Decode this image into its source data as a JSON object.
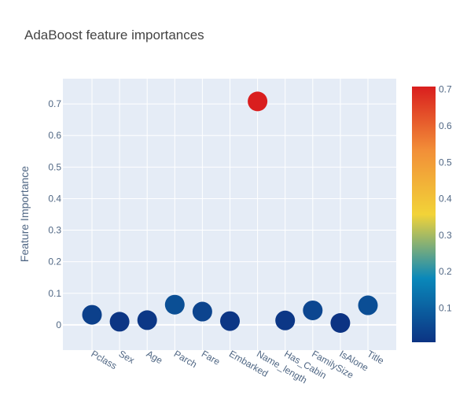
{
  "chart_data": {
    "type": "scatter",
    "title": "AdaBoost feature importances",
    "xlabel": "",
    "ylabel": "Feature Importance",
    "categories": [
      "Pclass",
      "Sex",
      "Age",
      "Parch",
      "Fare",
      "Embarked",
      "Name_length",
      "Has_Cabin",
      "FamilySize",
      "IsAlone",
      "Title"
    ],
    "values": [
      0.032,
      0.01,
      0.015,
      0.064,
      0.042,
      0.012,
      0.708,
      0.014,
      0.046,
      0.006,
      0.062
    ],
    "ylim": [
      -0.08,
      0.78
    ],
    "yticks": [
      0,
      0.1,
      0.2,
      0.3,
      0.4,
      0.5,
      0.6,
      0.7
    ],
    "ytick_labels": [
      "0",
      "0.1",
      "0.2",
      "0.3",
      "0.4",
      "0.5",
      "0.6",
      "0.7"
    ],
    "grid": true,
    "background_color": "#E5ECF6",
    "colorscale": "Portland-like (dark blue to red)",
    "colorbar": {
      "range": [
        0.006,
        0.708
      ],
      "ticks": [
        0.1,
        0.2,
        0.3,
        0.4,
        0.5,
        0.6,
        0.7
      ],
      "tick_labels": [
        "0.1",
        "0.2",
        "0.3",
        "0.4",
        "0.5",
        "0.6",
        "0.7"
      ],
      "stops": [
        "#0C3383",
        "#0A88BA",
        "#F2D338",
        "#F28F38",
        "#D91E1E"
      ],
      "placement": "right"
    }
  }
}
